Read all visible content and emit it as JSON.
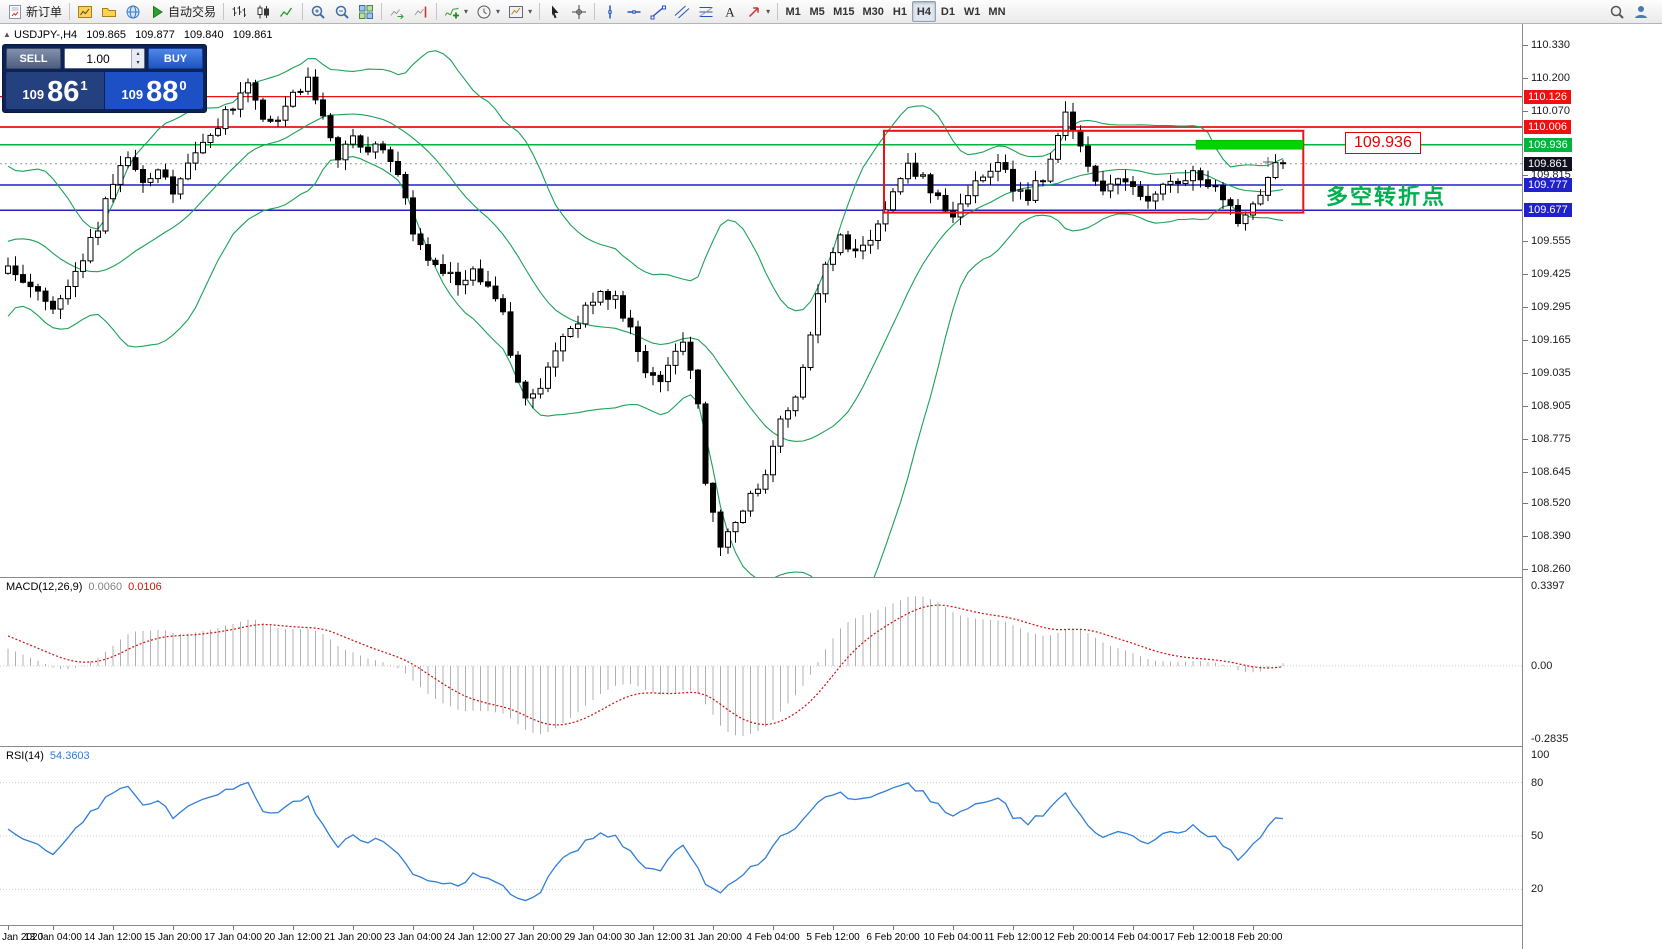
{
  "toolbar": {
    "groups": [
      [
        {
          "name": "new-order",
          "icon": "new-order",
          "label": "新订单"
        }
      ],
      [
        {
          "name": "charts",
          "icon": "chart-window"
        },
        {
          "name": "profiles",
          "icon": "folder"
        },
        {
          "name": "market-watch",
          "icon": "globe"
        },
        {
          "name": "auto-trading",
          "icon": "play",
          "label": "自动交易"
        }
      ],
      [
        {
          "name": "bar-chart-mode",
          "icon": "ohlc-bars"
        },
        {
          "name": "candlestick-mode",
          "icon": "candles"
        },
        {
          "name": "line-chart-mode",
          "icon": "line-chart"
        }
      ],
      [
        {
          "name": "zoom-in",
          "icon": "zoom-in"
        },
        {
          "name": "zoom-out",
          "icon": "zoom-out"
        },
        {
          "name": "tile-windows",
          "icon": "tile-windows"
        }
      ],
      [
        {
          "name": "auto-scroll",
          "icon": "auto-scroll"
        },
        {
          "name": "chart-shift",
          "icon": "chart-shift"
        }
      ],
      [
        {
          "name": "indicators",
          "icon": "indicators",
          "caret": true
        },
        {
          "name": "periods",
          "icon": "clock",
          "caret": true
        },
        {
          "name": "templates",
          "icon": "template",
          "caret": true
        }
      ],
      [
        {
          "name": "cursor",
          "icon": "cursor"
        },
        {
          "name": "crosshair",
          "icon": "crosshair"
        }
      ],
      [
        {
          "name": "vertical-line",
          "icon": "vertical-line"
        },
        {
          "name": "horizontal-line",
          "icon": "horizontal-line"
        },
        {
          "name": "trendline",
          "icon": "trendline"
        },
        {
          "name": "equidistant-channel",
          "icon": "channel"
        },
        {
          "name": "fibonacci",
          "icon": "fibonacci"
        },
        {
          "name": "text-tool",
          "icon": "text"
        },
        {
          "name": "arrows-tool",
          "icon": "arrow",
          "caret": true
        }
      ]
    ],
    "timeframes": [
      "M1",
      "M5",
      "M15",
      "M30",
      "H1",
      "H4",
      "D1",
      "W1",
      "MN"
    ],
    "active_timeframe": "H4",
    "right_icons": [
      {
        "name": "search",
        "icon": "magnifier"
      },
      {
        "name": "community",
        "icon": "person"
      }
    ]
  },
  "header": {
    "collapse_glyph": "▲",
    "symbol": "USDJPY-,H4",
    "open": "109.865",
    "high": "109.877",
    "low": "109.840",
    "close": "109.861"
  },
  "oct": {
    "sell_label": "SELL",
    "buy_label": "BUY",
    "volume": "1.00",
    "sell_price": {
      "prefix": "109",
      "big": "86",
      "sup": "1"
    },
    "buy_price": {
      "prefix": "109",
      "big": "88",
      "sup": "0"
    }
  },
  "price_axis": {
    "ticks": [
      {
        "text": "110.330",
        "price": 110.33
      },
      {
        "text": "110.200",
        "price": 110.2
      },
      {
        "text": "110.070",
        "price": 110.07
      },
      {
        "text": "109.815",
        "price": 109.815
      },
      {
        "text": "109.555",
        "price": 109.555
      },
      {
        "text": "109.425",
        "price": 109.425
      },
      {
        "text": "109.295",
        "price": 109.295
      },
      {
        "text": "109.165",
        "price": 109.165
      },
      {
        "text": "109.035",
        "price": 109.035
      },
      {
        "text": "108.905",
        "price": 108.905
      },
      {
        "text": "108.775",
        "price": 108.775
      },
      {
        "text": "108.645",
        "price": 108.645
      },
      {
        "text": "108.520",
        "price": 108.52
      },
      {
        "text": "108.390",
        "price": 108.39
      },
      {
        "text": "108.260",
        "price": 108.26
      }
    ],
    "markers": [
      {
        "text": "110.126",
        "price": 110.126,
        "bg": "#ee1111"
      },
      {
        "text": "110.006",
        "price": 110.006,
        "bg": "#ee1111"
      },
      {
        "text": "109.936",
        "price": 109.936,
        "bg": "#00b43c"
      },
      {
        "text": "109.861",
        "price": 109.861,
        "bg": "#10101e"
      },
      {
        "text": "109.777",
        "price": 109.777,
        "bg": "#2121c8"
      },
      {
        "text": "109.677",
        "price": 109.677,
        "bg": "#2121c8"
      }
    ]
  },
  "macd": {
    "label": "MACD(12,26,9)",
    "value_main": "0.0060",
    "value_signal": "0.0106",
    "axis_top": "0.3397",
    "axis_zero": "0.00",
    "axis_bottom": "-0.2835"
  },
  "rsi": {
    "label": "RSI(14)",
    "value": "54.3603",
    "axis_labels": [
      {
        "text": "100",
        "value": 100
      },
      {
        "text": "80",
        "value": 80
      },
      {
        "text": "50",
        "value": 50
      },
      {
        "text": "20",
        "value": 20
      }
    ]
  },
  "time_axis": {
    "labels": [
      {
        "text": "Jan 2020",
        "index": 0,
        "month": true
      },
      {
        "text": "13 Jan 04:00",
        "index": 6
      },
      {
        "text": "14 Jan 12:00",
        "index": 14
      },
      {
        "text": "15 Jan 20:00",
        "index": 22
      },
      {
        "text": "17 Jan 04:00",
        "index": 30
      },
      {
        "text": "20 Jan 12:00",
        "index": 38
      },
      {
        "text": "21 Jan 20:00",
        "index": 46
      },
      {
        "text": "23 Jan 04:00",
        "index": 54
      },
      {
        "text": "24 Jan 12:00",
        "index": 62
      },
      {
        "text": "27 Jan 20:00",
        "index": 70
      },
      {
        "text": "29 Jan 04:00",
        "index": 78
      },
      {
        "text": "30 Jan 12:00",
        "index": 86
      },
      {
        "text": "31 Jan 20:00",
        "index": 94
      },
      {
        "text": "4 Feb 04:00",
        "index": 102
      },
      {
        "text": "5 Feb 12:00",
        "index": 110
      },
      {
        "text": "6 Feb 20:00",
        "index": 118
      },
      {
        "text": "10 Feb 04:00",
        "index": 126
      },
      {
        "text": "11 Feb 12:00",
        "index": 134
      },
      {
        "text": "12 Feb 20:00",
        "index": 142
      },
      {
        "text": "14 Feb 04:00",
        "index": 150
      },
      {
        "text": "17 Feb 12:00",
        "index": 158
      },
      {
        "text": "18 Feb 20:00",
        "index": 166
      }
    ]
  },
  "chart_data": {
    "type": "candlestick",
    "symbol": "USDJPY",
    "timeframe": "H4",
    "visible_candles": 171,
    "last_bar_ohlc": {
      "open": 109.865,
      "high": 109.877,
      "low": 109.84,
      "close": 109.861
    },
    "price_axis_range_approx": [
      108.23,
      110.41
    ],
    "price_keypoints": [
      [
        -30,
        109.05
      ],
      [
        -24,
        108.92
      ],
      [
        -18,
        109.35
      ],
      [
        -14,
        109.8
      ],
      [
        -10,
        109.7
      ],
      [
        -6,
        109.52
      ],
      [
        -3,
        109.4
      ],
      [
        0,
        109.45
      ],
      [
        3,
        109.38
      ],
      [
        6,
        109.3
      ],
      [
        9,
        109.42
      ],
      [
        12,
        109.62
      ],
      [
        14,
        109.8
      ],
      [
        16,
        109.86
      ],
      [
        18,
        109.77
      ],
      [
        20,
        109.82
      ],
      [
        22,
        109.75
      ],
      [
        24,
        109.88
      ],
      [
        26,
        109.95
      ],
      [
        28,
        110.02
      ],
      [
        30,
        110.1
      ],
      [
        32,
        110.17
      ],
      [
        34,
        110.06
      ],
      [
        36,
        110.02
      ],
      [
        38,
        110.12
      ],
      [
        40,
        110.18
      ],
      [
        42,
        110.06
      ],
      [
        44,
        109.9
      ],
      [
        46,
        109.96
      ],
      [
        48,
        109.92
      ],
      [
        50,
        109.94
      ],
      [
        52,
        109.82
      ],
      [
        54,
        109.6
      ],
      [
        56,
        109.48
      ],
      [
        58,
        109.45
      ],
      [
        60,
        109.38
      ],
      [
        62,
        109.43
      ],
      [
        64,
        109.36
      ],
      [
        66,
        109.3
      ],
      [
        67,
        109.1
      ],
      [
        69,
        108.92
      ],
      [
        71,
        108.98
      ],
      [
        73,
        109.12
      ],
      [
        75,
        109.2
      ],
      [
        77,
        109.28
      ],
      [
        79,
        109.36
      ],
      [
        81,
        109.34
      ],
      [
        83,
        109.2
      ],
      [
        85,
        109.05
      ],
      [
        87,
        108.98
      ],
      [
        89,
        109.1
      ],
      [
        90,
        109.18
      ],
      [
        92,
        108.9
      ],
      [
        93,
        108.62
      ],
      [
        95,
        108.36
      ],
      [
        97,
        108.42
      ],
      [
        99,
        108.55
      ],
      [
        101,
        108.65
      ],
      [
        103,
        108.83
      ],
      [
        105,
        108.95
      ],
      [
        107,
        109.2
      ],
      [
        109,
        109.45
      ],
      [
        111,
        109.56
      ],
      [
        113,
        109.5
      ],
      [
        115,
        109.55
      ],
      [
        117,
        109.7
      ],
      [
        119,
        109.8
      ],
      [
        120,
        109.87
      ],
      [
        122,
        109.8
      ],
      [
        124,
        109.72
      ],
      [
        126,
        109.65
      ],
      [
        128,
        109.74
      ],
      [
        130,
        109.8
      ],
      [
        132,
        109.86
      ],
      [
        134,
        109.77
      ],
      [
        136,
        109.74
      ],
      [
        138,
        109.8
      ],
      [
        140,
        109.95
      ],
      [
        141,
        110.06
      ],
      [
        142,
        109.98
      ],
      [
        144,
        109.85
      ],
      [
        146,
        109.74
      ],
      [
        148,
        109.8
      ],
      [
        150,
        109.76
      ],
      [
        152,
        109.73
      ],
      [
        154,
        109.78
      ],
      [
        156,
        109.8
      ],
      [
        158,
        109.83
      ],
      [
        160,
        109.78
      ],
      [
        162,
        109.72
      ],
      [
        164,
        109.64
      ],
      [
        166,
        109.7
      ],
      [
        168,
        109.8
      ],
      [
        170,
        109.861
      ]
    ],
    "indicators": {
      "bollinger_bands": {
        "period": 20,
        "deviation": 2,
        "color": "#1ba158"
      },
      "macd": {
        "fast": 12,
        "slow": 26,
        "signal": 9,
        "current_main": 0.006,
        "current_signal": 0.0106,
        "scale_max": 0.3397,
        "scale_min": -0.2835,
        "histogram_color": "#b0b0b0",
        "signal_color": "#d01010"
      },
      "rsi": {
        "period": 14,
        "current": 54.3603,
        "levels": [
          80,
          50,
          20
        ],
        "color": "#2f7ed8"
      }
    },
    "objects": {
      "horizontal_lines": [
        {
          "price": 110.126,
          "color": "#ee1111",
          "width": 1.2
        },
        {
          "price": 110.006,
          "color": "#ee1111",
          "width": 1.8
        },
        {
          "price": 109.936,
          "color": "#00b43c",
          "width": 1.5
        },
        {
          "price": 109.777,
          "color": "#2121c8",
          "width": 1.5
        },
        {
          "price": 109.677,
          "color": "#2121c8",
          "width": 1.5
        }
      ],
      "rectangle": {
        "from_bar": 116.8,
        "to_bar": 172.7,
        "price_top": 109.991,
        "price_bottom": 109.668,
        "color": "#ee1111"
      },
      "green_segment": {
        "from_bar": 158.4,
        "to_bar": 172.7,
        "price": 109.936,
        "color": "#00d400",
        "thickness": 9
      },
      "price_note": {
        "text": "109.936"
      },
      "text_note": {
        "text": "多空转折点",
        "color": "#00b050"
      }
    }
  }
}
